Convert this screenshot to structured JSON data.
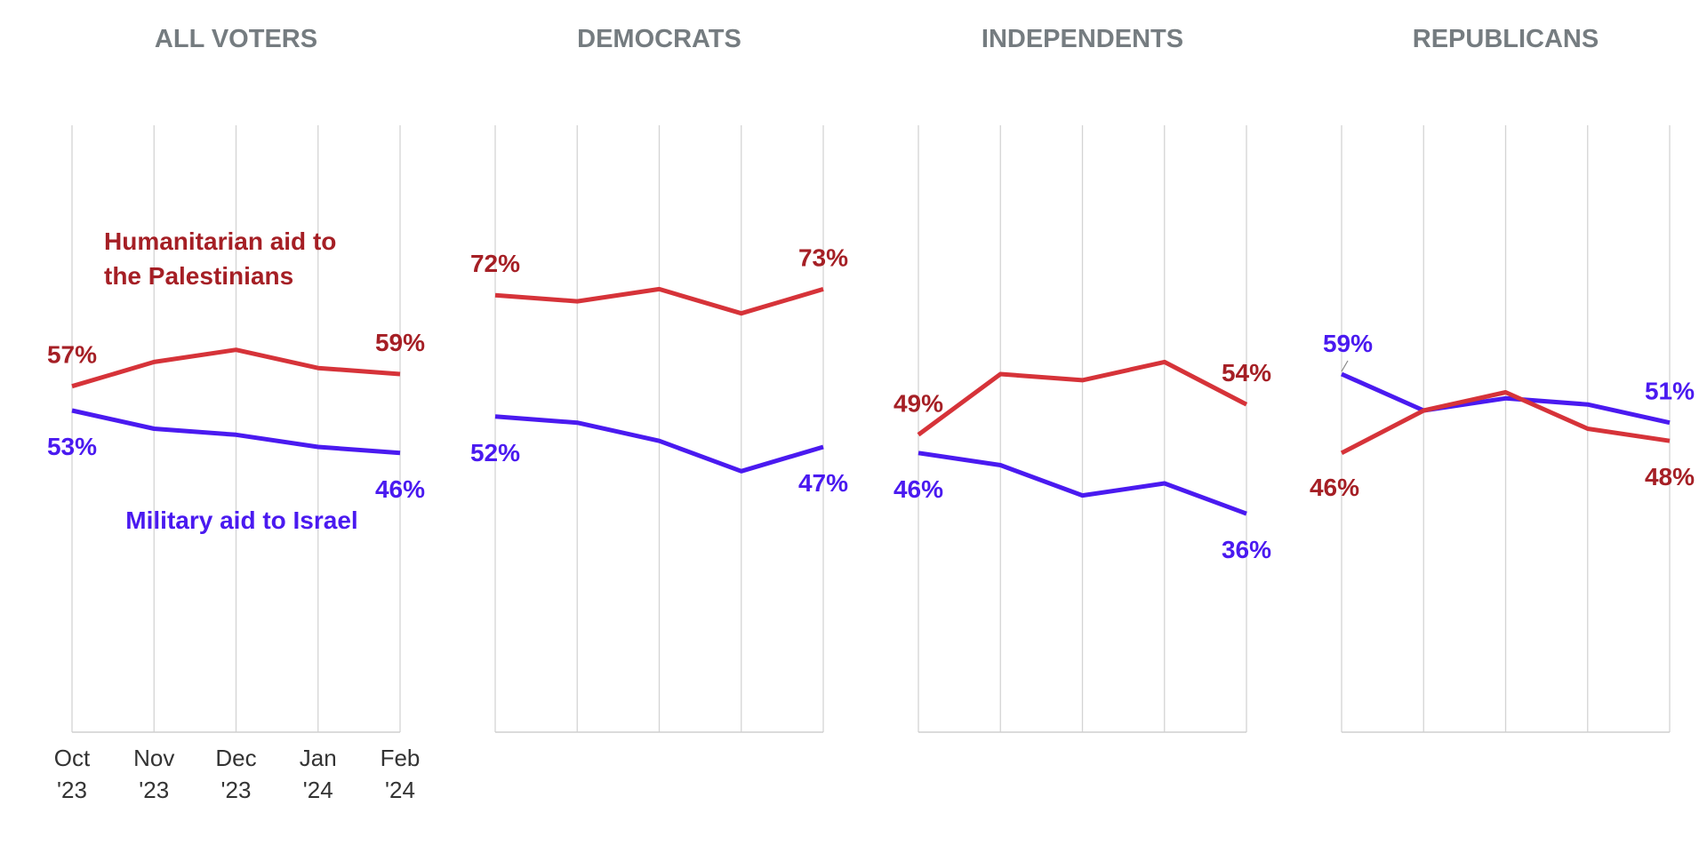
{
  "chart_data": {
    "type": "line",
    "x": [
      "Oct '23",
      "Nov '23",
      "Dec '23",
      "Jan '24",
      "Feb '24"
    ],
    "x_tick_labels": [
      [
        "Oct",
        "'23"
      ],
      [
        "Nov",
        "'23"
      ],
      [
        "Dec",
        "'23"
      ],
      [
        "Jan",
        "'24"
      ],
      [
        "Feb",
        "'24"
      ]
    ],
    "ylim": [
      0,
      100
    ],
    "grid": true,
    "legend": "annotations inside first panel",
    "colors": {
      "humanitarian": "#d63339",
      "humanitarian_label": "#a51f25",
      "military": "#4a1af0",
      "military_label": "#4a1af0"
    },
    "annotations": {
      "humanitarian": [
        "Humanitarian aid to",
        "the Palestinians"
      ],
      "military": "Military aid to Israel"
    },
    "panels": [
      {
        "title": "ALL VOTERS",
        "series": [
          {
            "key": "humanitarian",
            "values": [
              57,
              61,
              63,
              60,
              59
            ],
            "start_label": "57%",
            "end_label": "59%"
          },
          {
            "key": "military",
            "values": [
              53,
              50,
              49,
              47,
              46
            ],
            "start_label": "53%",
            "end_label": "46%"
          }
        ]
      },
      {
        "title": "DEMOCRATS",
        "series": [
          {
            "key": "humanitarian",
            "values": [
              72,
              71,
              73,
              69,
              73
            ],
            "start_label": "72%",
            "end_label": "73%"
          },
          {
            "key": "military",
            "values": [
              52,
              51,
              48,
              43,
              47
            ],
            "start_label": "52%",
            "end_label": "47%"
          }
        ]
      },
      {
        "title": "INDEPENDENTS",
        "series": [
          {
            "key": "humanitarian",
            "values": [
              49,
              59,
              58,
              61,
              54
            ],
            "start_label": "49%",
            "end_label": "54%"
          },
          {
            "key": "military",
            "values": [
              46,
              44,
              39,
              41,
              36
            ],
            "start_label": "46%",
            "end_label": "36%"
          }
        ]
      },
      {
        "title": "REPUBLICANS",
        "series": [
          {
            "key": "humanitarian",
            "values": [
              46,
              53,
              56,
              50,
              48
            ],
            "start_label": "46%",
            "end_label": "48%"
          },
          {
            "key": "military",
            "values": [
              59,
              53,
              55,
              54,
              51
            ],
            "start_label": "59%",
            "end_label": "51%"
          }
        ]
      }
    ]
  }
}
